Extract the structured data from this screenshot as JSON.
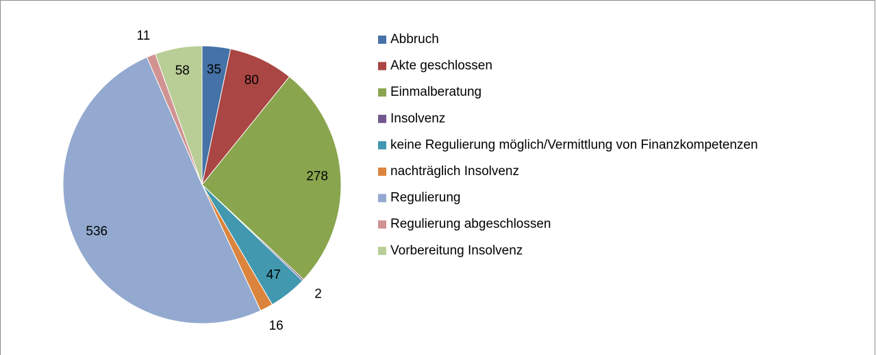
{
  "chart_data": {
    "type": "pie",
    "categories": [
      "Abbruch",
      "Akte geschlossen",
      "Einmalberatung",
      "Insolvenz",
      "keine Regulierung möglich/Vermittlung von Finanzkompetenzen",
      "nachträglich Insolvenz",
      "Regulierung",
      "Regulierung abgeschlossen",
      "Vorbereitung Insolvenz"
    ],
    "values": [
      35,
      80,
      278,
      2,
      47,
      16,
      536,
      11,
      58
    ],
    "colors": [
      "#4572a7",
      "#aa4643",
      "#89a54e",
      "#71588f",
      "#4198af",
      "#db843d",
      "#93a9cf",
      "#d19392",
      "#b9cd96"
    ],
    "legend": "right"
  }
}
